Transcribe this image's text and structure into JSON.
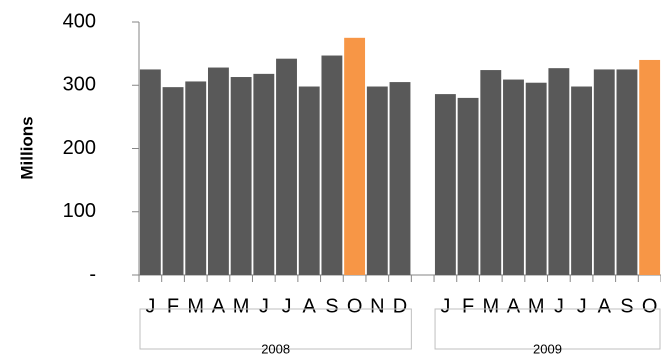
{
  "chart_data": {
    "type": "bar",
    "y_label": "Millions",
    "categories": [
      "J",
      "F",
      "M",
      "A",
      "M",
      "J",
      "J",
      "A",
      "S",
      "O",
      "N",
      "D",
      null,
      "J",
      "F",
      "M",
      "A",
      "M",
      "J",
      "J",
      "A",
      "S",
      "O"
    ],
    "values": [
      325,
      297,
      306,
      328,
      313,
      318,
      342,
      298,
      347,
      375,
      298,
      305,
      null,
      286,
      280,
      324,
      309,
      304,
      327,
      298,
      325,
      325,
      340
    ],
    "colors": [
      "#595959",
      "#595959",
      "#595959",
      "#595959",
      "#595959",
      "#595959",
      "#595959",
      "#595959",
      "#595959",
      "#f79646",
      "#595959",
      "#595959",
      null,
      "#595959",
      "#595959",
      "#595959",
      "#595959",
      "#595959",
      "#595959",
      "#595959",
      "#595959",
      "#595959",
      "#f79646"
    ],
    "groups": [
      "2008",
      "2009"
    ],
    "ylim": [
      0,
      400
    ],
    "yticks": [
      {
        "value": 0,
        "label": "-"
      },
      100,
      200,
      300,
      400
    ],
    "grid": false
  }
}
